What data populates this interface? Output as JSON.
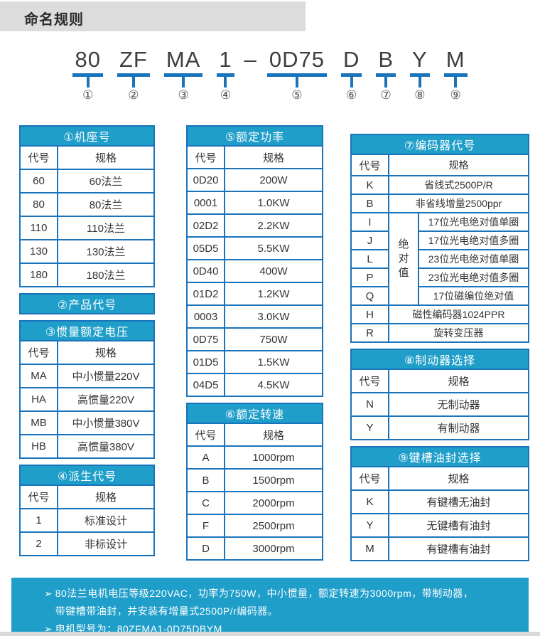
{
  "page": {
    "title": "命名规则"
  },
  "colors": {
    "section_header_bg": "#1e9ec9",
    "table_border": "#1a74bc",
    "footer_bg": "#1e9ec9",
    "title_bar_bg": "#dcdcdc",
    "underline_blue": "#1a74bc"
  },
  "model": {
    "segments": [
      {
        "text": "80",
        "num": "①"
      },
      {
        "text": "ZF",
        "num": "②"
      },
      {
        "text": "MA",
        "num": "③"
      },
      {
        "text": "1",
        "num": "④"
      },
      {
        "text": "–",
        "dash": true
      },
      {
        "text": "0D75",
        "num": "⑤"
      },
      {
        "text": "D",
        "num": "⑥"
      },
      {
        "text": "B",
        "num": "⑦"
      },
      {
        "text": "Y",
        "num": "⑧"
      },
      {
        "text": "M",
        "num": "⑨"
      }
    ]
  },
  "columns": [
    {
      "sections": [
        {
          "title": "①机座号",
          "headers": [
            "代号",
            "规格"
          ],
          "rows": [
            [
              "60",
              "60法兰"
            ],
            [
              "80",
              "80法兰"
            ],
            [
              "110",
              "110法兰"
            ],
            [
              "130",
              "130法兰"
            ],
            [
              "180",
              "180法兰"
            ]
          ]
        },
        {
          "title": "②产品代号"
        },
        {
          "title": "③惯量额定电压",
          "headers": [
            "代号",
            "规格"
          ],
          "rows": [
            [
              "MA",
              "中小惯量220V"
            ],
            [
              "HA",
              "高惯量220V"
            ],
            [
              "MB",
              "中小惯量380V"
            ],
            [
              "HB",
              "高惯量380V"
            ]
          ]
        },
        {
          "title": "④派生代号",
          "headers": [
            "代号",
            "规格"
          ],
          "rows": [
            [
              "1",
              "标准设计"
            ],
            [
              "2",
              "非标设计"
            ]
          ]
        }
      ]
    },
    {
      "sections": [
        {
          "title": "⑤额定功率",
          "headers": [
            "代号",
            "规格"
          ],
          "rows": [
            [
              "0D20",
              "200W"
            ],
            [
              "0001",
              "1.0KW"
            ],
            [
              "02D2",
              "2.2KW"
            ],
            [
              "05D5",
              "5.5KW"
            ],
            [
              "0D40",
              "400W"
            ],
            [
              "01D2",
              "1.2KW"
            ],
            [
              "0003",
              "3.0KW"
            ],
            [
              "0D75",
              "750W"
            ],
            [
              "01D5",
              "1.5KW"
            ],
            [
              "04D5",
              "4.5KW"
            ]
          ]
        },
        {
          "title": "⑥额定转速",
          "headers": [
            "代号",
            "规格"
          ],
          "rows": [
            [
              "A",
              "1000rpm"
            ],
            [
              "B",
              "1500rpm"
            ],
            [
              "C",
              "2000rpm"
            ],
            [
              "F",
              "2500rpm"
            ],
            [
              "D",
              "3000rpm"
            ]
          ]
        }
      ]
    },
    {
      "sections": [
        {
          "title": "⑦编码器代号",
          "headers": [
            "代号",
            "规格"
          ],
          "merge": {
            "start": 2,
            "end": 6,
            "label": "绝对值"
          },
          "rows": [
            [
              "K",
              "省线式2500P/R"
            ],
            [
              "B",
              "非省线增量2500ppr"
            ],
            [
              "I",
              "17位光电绝对值单圈"
            ],
            [
              "J",
              "17位光电绝对值多圈"
            ],
            [
              "L",
              "23位光电绝对值单圈"
            ],
            [
              "P",
              "23位光电绝对值多圈"
            ],
            [
              "Q",
              "17位磁编位绝对值"
            ],
            [
              "H",
              "磁性编码器1024PPR"
            ],
            [
              "R",
              "旋转变压器"
            ]
          ]
        },
        {
          "title": "⑧制动器选择",
          "headers": [
            "代号",
            "规格"
          ],
          "rows": [
            [
              "N",
              "无制动器"
            ],
            [
              "Y",
              "有制动器"
            ]
          ]
        },
        {
          "title": "⑨键槽油封选择",
          "headers": [
            "代号",
            "规格"
          ],
          "rows": [
            [
              "K",
              "有键槽无油封"
            ],
            [
              "Y",
              "无键槽有油封"
            ],
            [
              "M",
              "有键槽有油封"
            ]
          ]
        }
      ]
    }
  ],
  "footer": {
    "items": [
      {
        "bullet": "➢",
        "lines": [
          "80法兰电机电压等级220VAC，功率为750W，中小惯量，额定转速为3000rpm，带制动器，",
          "带键槽带油封，并安装有增量式2500P/r编码器。"
        ]
      },
      {
        "bullet": "➢",
        "lines": [
          "电机型号为：80ZFMA1-0D75DBYM"
        ]
      }
    ]
  }
}
